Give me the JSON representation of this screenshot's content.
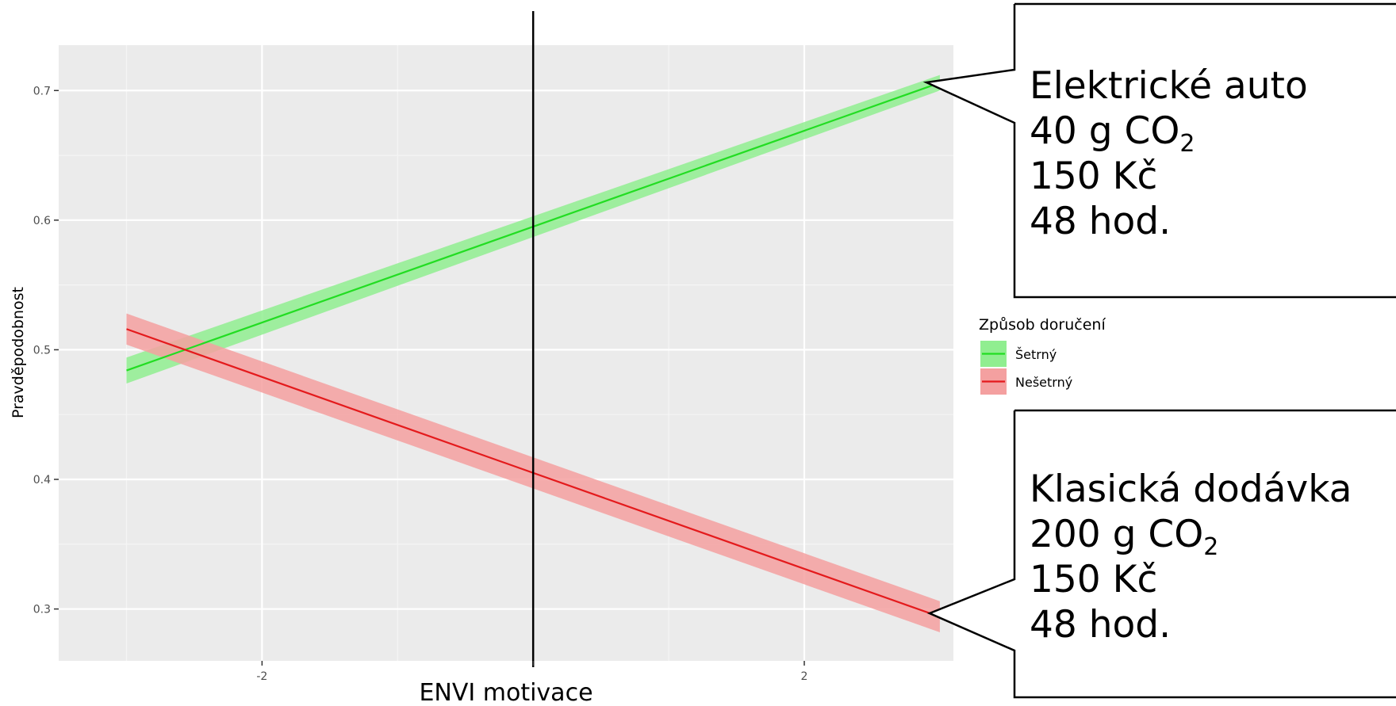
{
  "chart_data": {
    "type": "line",
    "xlabel": "ENVI motivace",
    "ylabel": "Pravděpodobnost",
    "xlim": [
      -3.5,
      3.1
    ],
    "ylim": [
      0.26,
      0.735
    ],
    "x_ticks": [
      -2,
      0,
      2
    ],
    "x_tick_labels": [
      "-2",
      "",
      "2"
    ],
    "y_ticks": [
      0.3,
      0.4,
      0.5,
      0.6,
      0.7
    ],
    "y_tick_labels": [
      "0.3",
      "0.4",
      "0.5",
      "0.6",
      "0.7"
    ],
    "grid": true,
    "vline_x": 0.0,
    "legend": {
      "title": "Způsob doručení",
      "position": "right"
    },
    "series": [
      {
        "name": "Šetrný",
        "color": "#22dd22",
        "band_color": "#90ee90",
        "x": [
          -3.0,
          3.0
        ],
        "y": [
          0.484,
          0.706
        ],
        "lower": [
          0.474,
          0.7
        ],
        "upper": [
          0.494,
          0.712
        ]
      },
      {
        "name": "Nešetrný",
        "color": "#e41a1c",
        "band_color": "#f4a0a0",
        "x": [
          -3.0,
          3.0
        ],
        "y": [
          0.516,
          0.294
        ],
        "lower": [
          0.504,
          0.282
        ],
        "upper": [
          0.528,
          0.306
        ]
      }
    ]
  },
  "callouts": {
    "top": {
      "line1": "Elektrické auto",
      "line2_pre": "40 g CO",
      "line2_sub": "2",
      "line3": "150 Kč",
      "line4": "48 hod."
    },
    "bottom": {
      "line1": "Klasická dodávka",
      "line2_pre": "200 g CO",
      "line2_sub": "2",
      "line3": "150 Kč",
      "line4": "48 hod."
    }
  }
}
